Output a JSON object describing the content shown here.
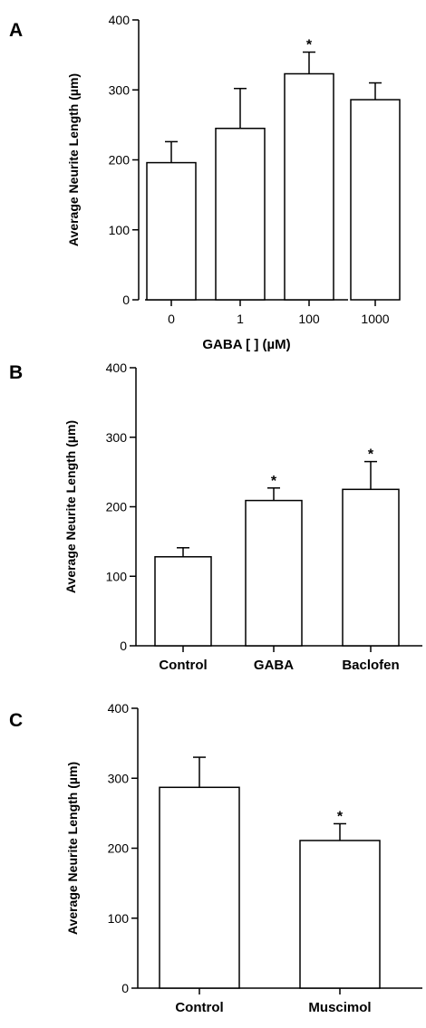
{
  "chart_data": [
    {
      "panel": "A",
      "type": "bar",
      "categories": [
        "0",
        "1",
        "100",
        "1000"
      ],
      "values": [
        196,
        245,
        323,
        286
      ],
      "errors": [
        30,
        57,
        31,
        24
      ],
      "significance": [
        "",
        "",
        "*",
        ""
      ],
      "ylabel": "Average Neurite Length (µm)",
      "xlabel": "GABA [ ] (µM)",
      "ylim": [
        0,
        400
      ],
      "yticks": [
        "0",
        "100",
        "200",
        "300",
        "400"
      ],
      "grid": false
    },
    {
      "panel": "B",
      "type": "bar",
      "categories": [
        "Control",
        "GABA",
        "Baclofen"
      ],
      "values": [
        128,
        209,
        225
      ],
      "errors": [
        13,
        18,
        40
      ],
      "significance": [
        "",
        "*",
        "*"
      ],
      "ylabel": "Average Neurite Length (µm)",
      "xlabel": "",
      "ylim": [
        0,
        400
      ],
      "yticks": [
        "0",
        "100",
        "200",
        "300",
        "400"
      ],
      "grid": false
    },
    {
      "panel": "C",
      "type": "bar",
      "categories": [
        "Control",
        "Muscimol"
      ],
      "values": [
        287,
        211
      ],
      "errors": [
        43,
        24
      ],
      "significance": [
        "",
        "*"
      ],
      "ylabel": "Average Neurite Length (µm)",
      "xlabel": "",
      "ylim": [
        0,
        400
      ],
      "yticks": [
        "0",
        "100",
        "200",
        "300",
        "400"
      ],
      "grid": false
    }
  ]
}
